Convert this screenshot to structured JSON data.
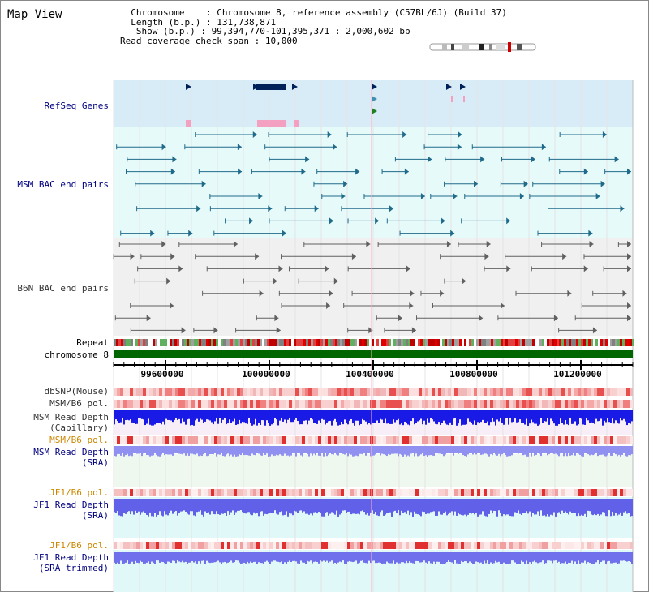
{
  "title": "Map View",
  "info": {
    "chromosome_key": "Chromosome",
    "chromosome_val": "Chromosome 8, reference assembly (C57BL/6J) (Build 37)",
    "length_key": "Length (b.p.)",
    "length_val": "131,738,871",
    "show_key": "Show (b.p.)",
    "show_val": "99,394,770-101,395,371 : 2,000,602 bp",
    "coverage_key": "Read coverage check span",
    "coverage_val": "10,000"
  },
  "tracks": {
    "refseq": "RefSeq Genes",
    "msm_bac": "MSM BAC end pairs",
    "b6n_bac": "B6N BAC end pairs",
    "repeat": "Repeat",
    "chromosome": "chromosome 8",
    "dbsnp": "dbSNP(Mouse)",
    "msm_b6_pol": "MSM/B6 pol.",
    "msm_depth_cap_1": "MSM Read Depth",
    "msm_depth_cap_2": "(Capillary)",
    "msm_b6_pol2": "MSM/B6 pol.",
    "msm_depth_sra_1": "MSM Read Depth",
    "msm_depth_sra_2": "(SRA)",
    "jf1_b6_pol": "JF1/B6 pol.",
    "jf1_depth_sra_1": "JF1 Read Depth",
    "jf1_depth_sra_2": "(SRA)",
    "jf1_b6_pol2": "JF1/B6 pol.",
    "jf1_depth_trim_1": "JF1 Read Depth",
    "jf1_depth_trim_2": "(SRA trimmed)"
  },
  "axis": {
    "ticks": [
      "99600000",
      "100000000",
      "100400000",
      "100800000",
      "101200000"
    ]
  },
  "colors": {
    "refseq_bg": "#d8ecf8",
    "msm_bac_bg": "#e6fafa",
    "b6n_bac_bg": "#f0f0f0",
    "chrom_green": "#006600",
    "depth_blue": "#1a1ae6",
    "depth_light": "#8c8cf0",
    "pink": "#f4a0c0"
  }
}
